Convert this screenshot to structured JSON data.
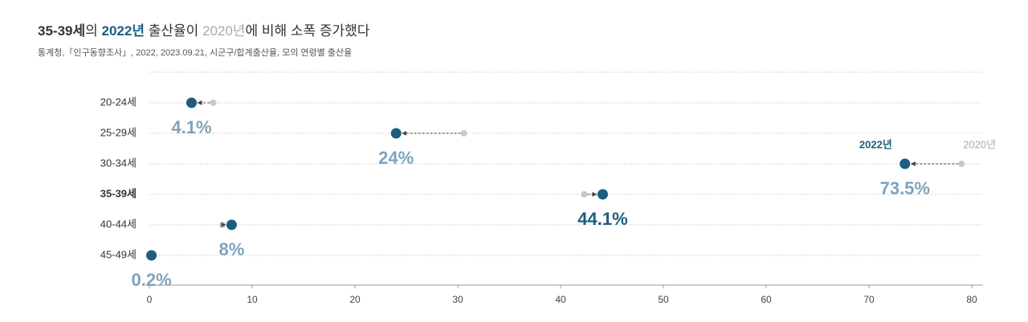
{
  "chart_data": {
    "type": "dumbbell",
    "title_parts": [
      "35-39세",
      "의 ",
      "2022년",
      " 출산율이 ",
      "2020년",
      "에 비해 소폭 증가했다"
    ],
    "subtitle": "통계청,「인구동향조사」, 2022, 2023.09.21, 시군구/합계출산율, 모의 연령별 출산율",
    "categories": [
      "20-24세",
      "25-29세",
      "30-34세",
      "35-39세",
      "40-44세",
      "45-49세"
    ],
    "highlight": 3,
    "series": [
      {
        "name": "2020년",
        "color": "#c9c9c9",
        "values": [
          6.2,
          30.6,
          79.0,
          42.3,
          7.1,
          0.2
        ]
      },
      {
        "name": "2022년",
        "color": "#1b5e7e",
        "values": [
          4.1,
          24,
          73.5,
          44.1,
          8,
          0.2
        ],
        "value_labels": [
          "4.1%",
          "24%",
          "73.5%",
          "44.1%",
          "8%",
          "0.2%"
        ],
        "label_color": "#7fa3bd"
      }
    ],
    "xlim": [
      0,
      80
    ],
    "xticks": [
      0,
      10,
      20,
      30,
      40,
      50,
      60,
      70,
      80
    ],
    "grid": true
  }
}
